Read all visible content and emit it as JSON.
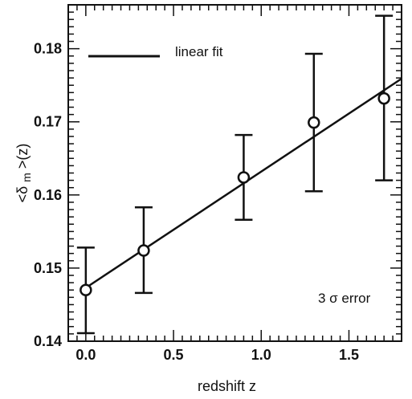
{
  "chart_data": {
    "type": "scatter",
    "title": "",
    "xlabel": "redshift z",
    "ylabel": {
      "prefix": "<δ",
      "subscript": "m",
      "suffix": ">(z)"
    },
    "xlim": [
      -0.1,
      1.8
    ],
    "ylim": [
      0.14,
      0.186
    ],
    "x_ticks": [
      0.0,
      0.5,
      1.0,
      1.5
    ],
    "x_tick_labels": [
      "0.0",
      "0.5",
      "1.0",
      "1.5"
    ],
    "y_ticks": [
      0.14,
      0.15,
      0.16,
      0.17,
      0.18
    ],
    "y_tick_labels": [
      "0.14",
      "0.15",
      "0.16",
      "0.17",
      "0.18"
    ],
    "grid": false,
    "series": [
      {
        "marker": "open-circle",
        "x": [
          0.0,
          0.33,
          0.9,
          1.3,
          1.7
        ],
        "y": [
          0.147,
          0.1524,
          0.1624,
          0.1699,
          0.1732
        ],
        "error_low": [
          0.1411,
          0.1466,
          0.1566,
          0.1605,
          0.162
        ],
        "error_high": [
          0.1528,
          0.1583,
          0.1682,
          0.1793,
          0.1845
        ]
      }
    ],
    "fit_line": {
      "x": [
        0.0,
        1.8
      ],
      "y": [
        0.1473,
        0.1759
      ]
    },
    "legend": {
      "label": "linear fit",
      "placement": "top-left"
    },
    "annotation": "3 σ error",
    "colors": {
      "line": "#111111",
      "marker_fill": "#ffffff"
    }
  }
}
